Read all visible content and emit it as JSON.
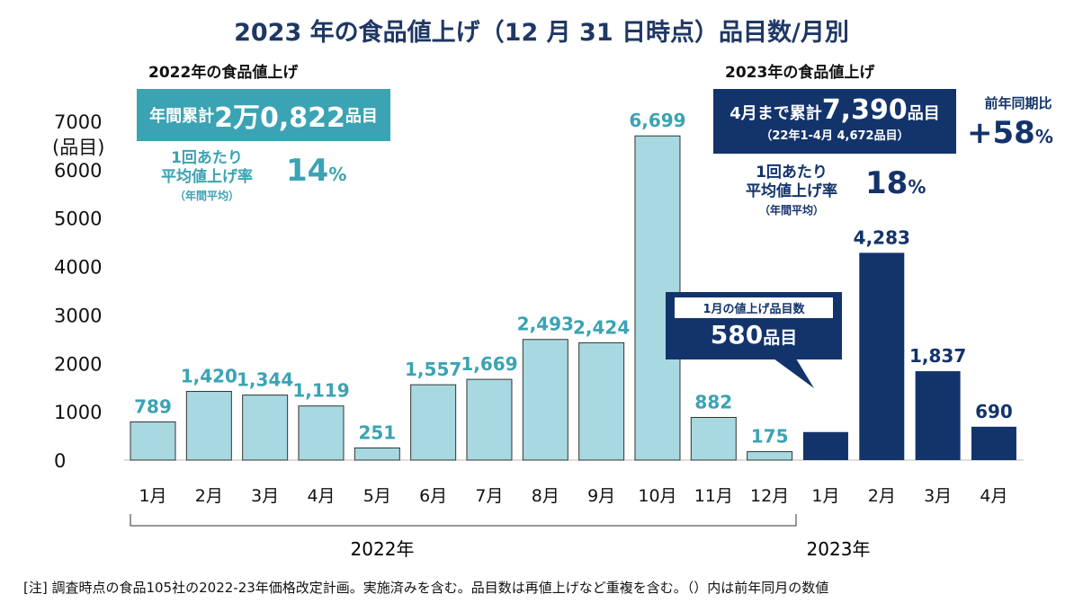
{
  "title": "2023 年の食品値上げ（12 月 31 日時点）品目数/月別",
  "left_panel": {
    "heading": "2022年の食品値上げ",
    "box_prefix": "年間累計",
    "box_value": "2万0,822",
    "box_suffix": "品目",
    "rate_label_1": "1回あたり",
    "rate_label_2": "平均値上げ率",
    "rate_label_3": "（年間平均）",
    "rate_value": "14",
    "rate_unit": "%"
  },
  "right_panel": {
    "heading": "2023年の食品値上げ",
    "box_prefix": "4月まで累計",
    "box_value": "7,390",
    "box_suffix": "品目",
    "box_sub": "（22年1-4月 4,672品目）",
    "yoy_label": "前年同期比",
    "yoy_value": "+58",
    "yoy_unit": "%",
    "rate_label_1": "1回あたり",
    "rate_label_2": "平均値上げ率",
    "rate_label_3": "（年間平均）",
    "rate_value": "18",
    "rate_unit": "%"
  },
  "callout": {
    "label": "1月の値上げ品目数",
    "value": "580",
    "unit": "品目"
  },
  "note": "[注]  調査時点の食品105社の2022-23年価格改定計画。実施済みを含む。品目数は再値上げなど重複を含む。（）内は前年同月の数値",
  "colors": {
    "y2022_bar": "#a8d8e0",
    "y2022_label": "#3aa3b4",
    "y2023": "#13336b"
  },
  "chart_data": {
    "type": "bar",
    "ylabel": "(品目)",
    "ylim": [
      0,
      7000
    ],
    "yticks": [
      "0",
      "1000",
      "2000",
      "3000",
      "4000",
      "5000",
      "6000",
      "7000"
    ],
    "categories": [
      "1月",
      "2月",
      "3月",
      "4月",
      "5月",
      "6月",
      "7月",
      "8月",
      "9月",
      "10月",
      "11月",
      "12月",
      "1月",
      "2月",
      "3月",
      "4月"
    ],
    "years": [
      "2022年",
      "2023年"
    ],
    "values": [
      789,
      1420,
      1344,
      1119,
      251,
      1557,
      1669,
      2493,
      2424,
      6699,
      882,
      175,
      580,
      4283,
      1837,
      690
    ],
    "labels": [
      "789",
      "1,420",
      "1,344",
      "1,119",
      "251",
      "1,557",
      "1,669",
      "2,493",
      "2,424",
      "6,699",
      "882",
      "175",
      "",
      "4,283",
      "1,837",
      "690"
    ],
    "grid": false
  }
}
